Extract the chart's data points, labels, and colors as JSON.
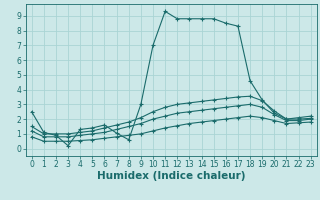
{
  "xlabel": "Humidex (Indice chaleur)",
  "background_color": "#cce8e8",
  "line_color": "#1a6b6b",
  "xlim": [
    -0.5,
    23.5
  ],
  "ylim": [
    -0.5,
    9.8
  ],
  "xticks": [
    0,
    1,
    2,
    3,
    4,
    5,
    6,
    7,
    8,
    9,
    10,
    11,
    12,
    13,
    14,
    15,
    16,
    17,
    18,
    19,
    20,
    21,
    22,
    23
  ],
  "yticks": [
    0,
    1,
    2,
    3,
    4,
    5,
    6,
    7,
    8,
    9
  ],
  "lines": [
    {
      "x": [
        0,
        1,
        2,
        3,
        4,
        5,
        6,
        7,
        8,
        9,
        10,
        11,
        12,
        13,
        14,
        15,
        16,
        17,
        18,
        19,
        20,
        21,
        22,
        23
      ],
      "y": [
        2.5,
        1.1,
        0.9,
        0.2,
        1.3,
        1.4,
        1.6,
        1.05,
        0.6,
        3.0,
        7.0,
        9.3,
        8.8,
        8.8,
        8.8,
        8.8,
        8.5,
        8.3,
        4.6,
        3.3,
        2.4,
        2.0,
        2.1,
        2.2
      ]
    },
    {
      "x": [
        0,
        1,
        2,
        3,
        4,
        5,
        6,
        7,
        8,
        9,
        10,
        11,
        12,
        13,
        14,
        15,
        16,
        17,
        18,
        19,
        20,
        21,
        22,
        23
      ],
      "y": [
        1.5,
        1.0,
        1.0,
        1.0,
        1.1,
        1.2,
        1.4,
        1.6,
        1.8,
        2.1,
        2.5,
        2.8,
        3.0,
        3.1,
        3.2,
        3.3,
        3.4,
        3.5,
        3.55,
        3.25,
        2.55,
        2.0,
        2.0,
        2.05
      ]
    },
    {
      "x": [
        0,
        1,
        2,
        3,
        4,
        5,
        6,
        7,
        8,
        9,
        10,
        11,
        12,
        13,
        14,
        15,
        16,
        17,
        18,
        19,
        20,
        21,
        22,
        23
      ],
      "y": [
        1.2,
        0.8,
        0.8,
        0.8,
        0.9,
        1.0,
        1.1,
        1.3,
        1.5,
        1.7,
        2.0,
        2.2,
        2.4,
        2.5,
        2.6,
        2.7,
        2.8,
        2.9,
        3.0,
        2.8,
        2.3,
        1.9,
        1.9,
        2.0
      ]
    },
    {
      "x": [
        0,
        1,
        2,
        3,
        4,
        5,
        6,
        7,
        8,
        9,
        10,
        11,
        12,
        13,
        14,
        15,
        16,
        17,
        18,
        19,
        20,
        21,
        22,
        23
      ],
      "y": [
        0.8,
        0.5,
        0.5,
        0.5,
        0.55,
        0.6,
        0.7,
        0.8,
        0.9,
        1.0,
        1.2,
        1.4,
        1.55,
        1.7,
        1.8,
        1.9,
        2.0,
        2.1,
        2.2,
        2.1,
        1.9,
        1.7,
        1.75,
        1.8
      ]
    }
  ],
  "grid_color": "#aad4d4",
  "tick_fontsize": 5.5,
  "xlabel_fontsize": 7.5
}
